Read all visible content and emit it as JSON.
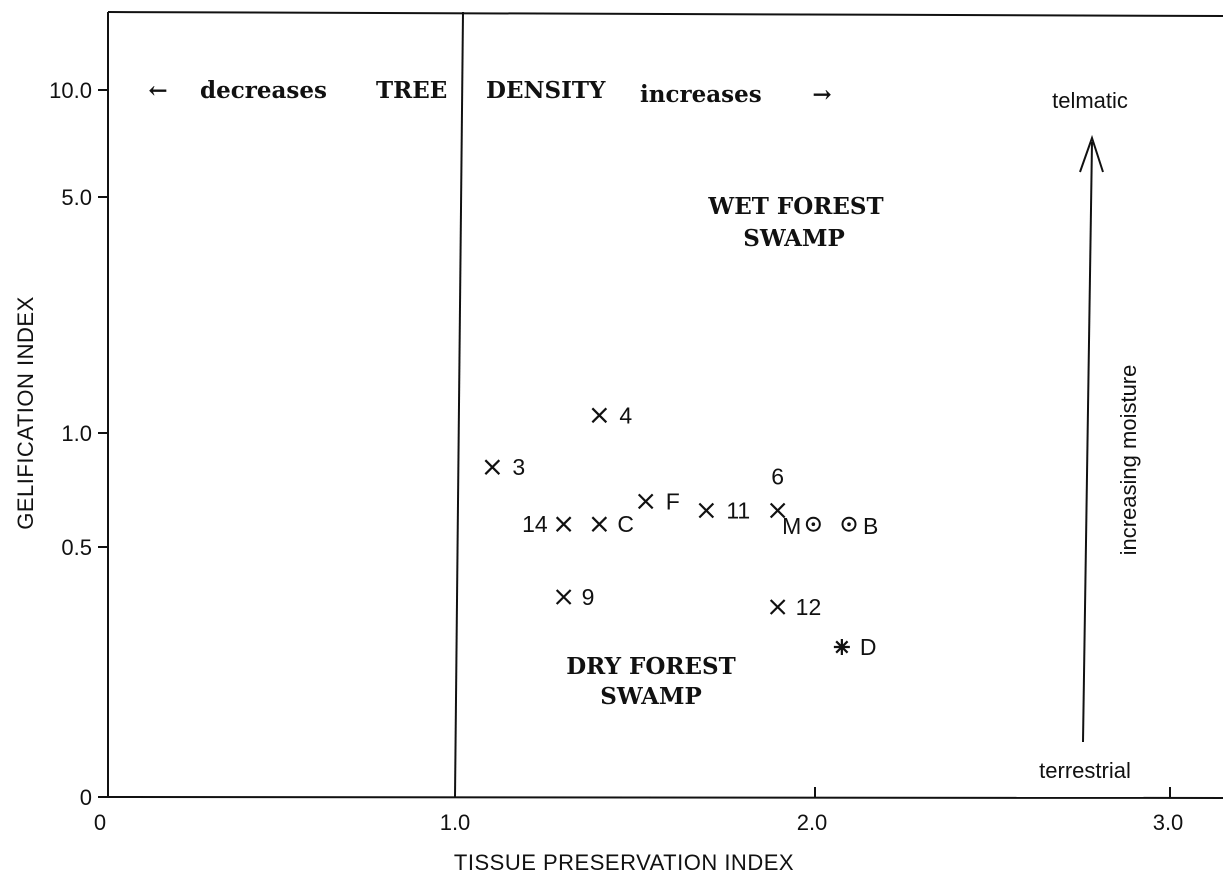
{
  "chart_data": {
    "type": "scatter",
    "title": "",
    "xlabel": "TISSUE PRESERVATION INDEX",
    "ylabel": "GELIFICATION INDEX",
    "xlim": [
      0,
      3.0
    ],
    "x_ticks": [
      "0",
      "1.0",
      "2.0",
      "3.0"
    ],
    "y_ticks": [
      "10.0",
      "5.0",
      "1.0",
      "0.5",
      "0"
    ],
    "y_scale": "nonlinear",
    "grid": false,
    "vertical_reference_line_x": 1.0,
    "top_annotation": {
      "left_arrow": "←",
      "decreases": "decreases",
      "tree": "TREE",
      "density": "DENSITY",
      "increases": "increases",
      "right_arrow": "→"
    },
    "regions": [
      {
        "line1": "WET FOREST",
        "line2": "SWAMP"
      },
      {
        "line1": "DRY FOREST",
        "line2": "SWAMP"
      }
    ],
    "moisture_axis": {
      "top": "telmatic",
      "middle": "increasing moisture",
      "bottom": "terrestrial"
    },
    "points": [
      {
        "label": "4",
        "marker": "x",
        "x": 1.4,
        "y": 1.3
      },
      {
        "label": "3",
        "marker": "x",
        "x": 1.1,
        "y": 0.85
      },
      {
        "label": "F",
        "marker": "x",
        "x": 1.53,
        "y": 0.7
      },
      {
        "label": "11",
        "marker": "x",
        "x": 1.7,
        "y": 0.66
      },
      {
        "label": "6",
        "marker": "x",
        "x": 1.9,
        "y": 0.66
      },
      {
        "label": "14",
        "marker": "x",
        "x": 1.3,
        "y": 0.6
      },
      {
        "label": "C",
        "marker": "x",
        "x": 1.4,
        "y": 0.6
      },
      {
        "label": "M",
        "marker": "circle-dot",
        "x": 2.0,
        "y": 0.6
      },
      {
        "label": "B",
        "marker": "circle-dot",
        "x": 2.1,
        "y": 0.6
      },
      {
        "label": "9",
        "marker": "x",
        "x": 1.3,
        "y": 0.4
      },
      {
        "label": "12",
        "marker": "x",
        "x": 1.9,
        "y": 0.38
      },
      {
        "label": "D",
        "marker": "asterisk",
        "x": 2.08,
        "y": 0.3
      }
    ]
  }
}
